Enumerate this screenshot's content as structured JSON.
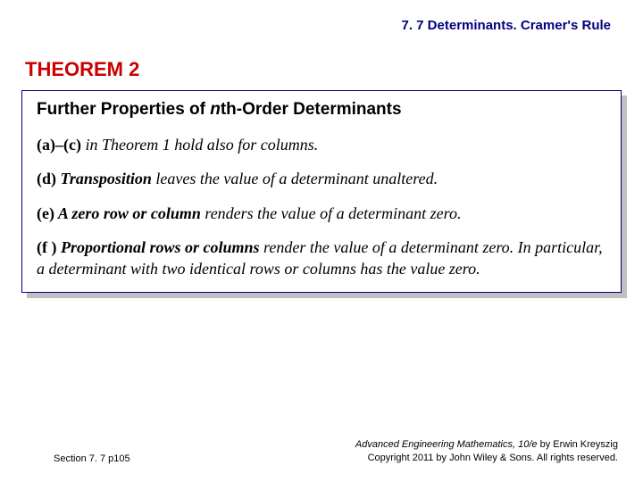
{
  "header": "7. 7 Determinants. Cramer's Rule",
  "theorem_label": "THEOREM 2",
  "box": {
    "title_prefix": "Further Properties of ",
    "title_ital": "n",
    "title_suffix": "th-Order Determinants",
    "items": {
      "a": {
        "label": "(a)–(c)",
        "rest": " in Theorem 1 hold also for columns."
      },
      "d": {
        "label": "(d)",
        "term": " Transposition",
        "rest": " leaves the value of a determinant unaltered."
      },
      "e": {
        "label": "(e)",
        "term": " A zero row or column",
        "rest": " renders the value of a determinant zero."
      },
      "f": {
        "label": "(f )",
        "term": " Proportional rows or columns",
        "rest": " render the value of a determinant zero. In particular, a determinant with two identical rows or columns has the value zero."
      }
    }
  },
  "footer": {
    "left": "Section 7. 7  p105",
    "book_title": "Advanced Engineering Mathematics, 10/e",
    "by": " by Erwin Kreyszig",
    "copyright": "Copyright 2011 by John Wiley & Sons. All rights reserved."
  },
  "colors": {
    "header_color": "#000080",
    "theorem_color": "#cc0000",
    "box_border": "#000080",
    "shadow": "#c0c0c0",
    "text": "#000000",
    "background": "#ffffff"
  }
}
